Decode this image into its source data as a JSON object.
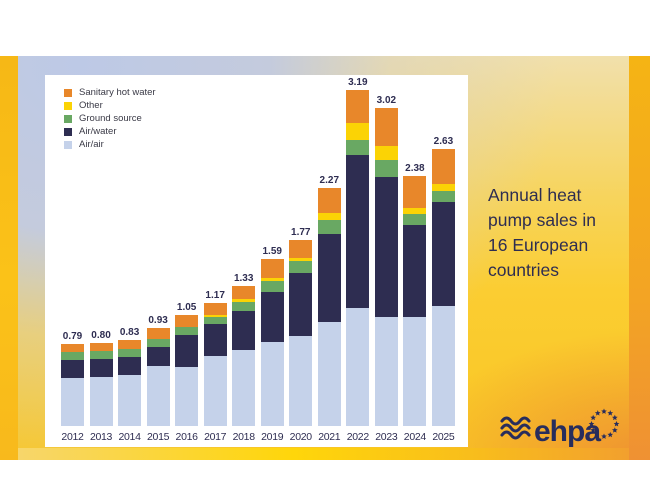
{
  "headline": {
    "text": "Annual heat pump sales in 16 European countries"
  },
  "logo": {
    "wordmark": "ehpa"
  },
  "colors": {
    "accent_navy": "#2e2d51",
    "panel_white": "#ffffff",
    "slide_gold": "#fbcd32",
    "slide_blue_gray": "#bdc9e6",
    "edge_orange": "#ef9133",
    "logo_navy": "#282d5c"
  },
  "chart_data": {
    "type": "bar",
    "stacked": true,
    "title": "",
    "xlabel": "",
    "ylabel": "",
    "grid": false,
    "legend_position": "top-left",
    "ylim": [
      0,
      3.4
    ],
    "categories": [
      "2012",
      "2013",
      "2014",
      "2015",
      "2016",
      "2017",
      "2018",
      "2019",
      "2020",
      "2021",
      "2022",
      "2023",
      "2024",
      "2025"
    ],
    "totals": [
      "0.79",
      "0.80",
      "0.83",
      "0.93",
      "1.05",
      "1.17",
      "1.33",
      "1.59",
      "1.77",
      "2.27",
      "3.19",
      "3.02",
      "2.38",
      "2.63"
    ],
    "series": [
      {
        "name": "Air/air",
        "color": "#c5d2ea",
        "values": [
          0.46,
          0.47,
          0.49,
          0.57,
          0.56,
          0.67,
          0.72,
          0.8,
          0.86,
          0.99,
          1.12,
          1.04,
          1.04,
          1.14
        ]
      },
      {
        "name": "Air/water",
        "color": "#2e2d51",
        "values": [
          0.17,
          0.17,
          0.17,
          0.18,
          0.3,
          0.3,
          0.37,
          0.48,
          0.6,
          0.84,
          1.46,
          1.33,
          0.88,
          0.99
        ]
      },
      {
        "name": "Ground source",
        "color": "#69a863",
        "values": [
          0.08,
          0.08,
          0.08,
          0.08,
          0.08,
          0.07,
          0.09,
          0.1,
          0.11,
          0.13,
          0.14,
          0.16,
          0.1,
          0.1
        ]
      },
      {
        "name": "Other",
        "color": "#fbd305",
        "values": [
          0.0,
          0.0,
          0.0,
          0.0,
          0.0,
          0.02,
          0.03,
          0.03,
          0.03,
          0.07,
          0.16,
          0.13,
          0.06,
          0.07
        ]
      },
      {
        "name": "Sanitary hot water",
        "color": "#e8872a",
        "values": [
          0.08,
          0.08,
          0.09,
          0.1,
          0.11,
          0.11,
          0.12,
          0.18,
          0.17,
          0.24,
          0.31,
          0.36,
          0.3,
          0.33
        ]
      }
    ],
    "legend_top_to_bottom": [
      "Sanitary hot water",
      "Other",
      "Ground source",
      "Air/water",
      "Air/air"
    ]
  }
}
